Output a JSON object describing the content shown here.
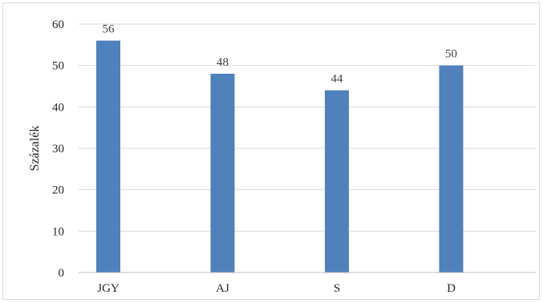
{
  "chart_data": {
    "type": "bar",
    "categories": [
      "JGY",
      "AJ",
      "S",
      "D"
    ],
    "values": [
      56,
      48,
      44,
      50
    ],
    "data_labels": [
      "56",
      "48",
      "44",
      "50"
    ],
    "title": "",
    "xlabel": "",
    "ylabel": "Százalék",
    "ylim": [
      0,
      60
    ],
    "yticks": [
      0,
      10,
      20,
      30,
      40,
      50,
      60
    ],
    "ytick_labels": [
      "0",
      "10",
      "20",
      "30",
      "40",
      "50",
      "60"
    ],
    "grid": true,
    "legend": "none",
    "colors": {
      "bar": "#4f81bd",
      "grid": "#d9d9d9",
      "axis": "#bfbfbf"
    }
  }
}
